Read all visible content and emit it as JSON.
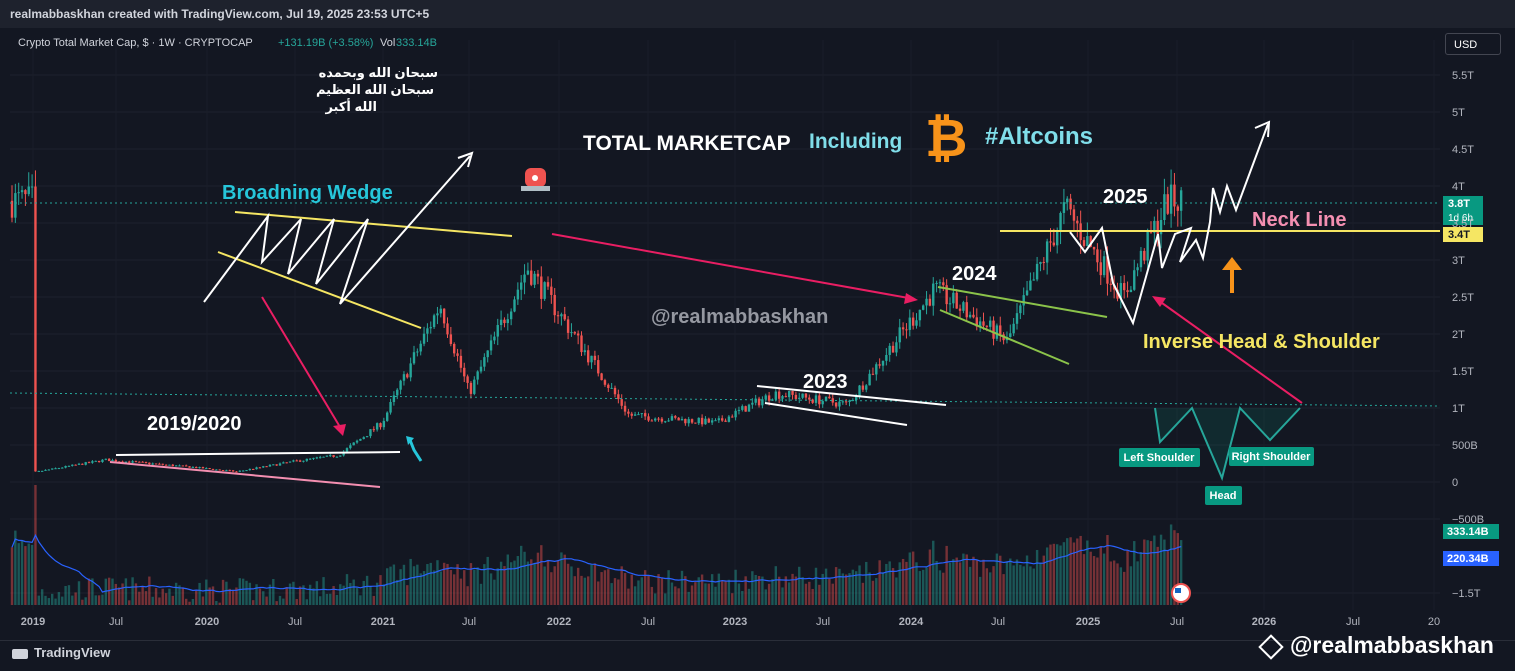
{
  "header": {
    "credit": "realmabbaskhan created with TradingView.com, Jul 19, 2025 23:53 UTC+5"
  },
  "legend": {
    "symbol": "Crypto Total Market Cap, $ · 1W · CRYPTOCAP",
    "change": "+131.19B (+3.58%)",
    "vol_label": "Vol",
    "vol_value": "333.14B"
  },
  "currency_button": "USD",
  "annotations": {
    "arabic_line1": "سبحان الله وبحمده",
    "arabic_line2": "سبحان الله العظيم",
    "arabic_line3": "الله أكبر",
    "title_part1": "TOTAL MARKETCAP",
    "title_part2": "Including",
    "title_part3": "#Altcoins",
    "broadening": "Broadning Wedge",
    "handle": "@realmabbaskhan",
    "y2019": "2019/2020",
    "y2023": "2023",
    "y2024": "2024",
    "y2025": "2025",
    "neck": "Neck Line",
    "ihs": "Inverse Head & Shoulder",
    "left_shoulder": "Left Shoulder",
    "head": "Head",
    "right_shoulder": "Right Shoulder"
  },
  "price_badges": {
    "last_price": "3.8T",
    "countdown": "1d 6h",
    "neck_price": "3.4T",
    "volume_last": "333.14B",
    "volume_ma": "220.34B"
  },
  "colors": {
    "background": "#131722",
    "bull": "#26a69a",
    "bear": "#ef5350",
    "neck": "#f5e663",
    "wedge": "#f5e663",
    "arrow_pink": "#e91e63",
    "cyan_text": "#26c6da",
    "ma_line": "#2962ff",
    "badge_green": "#089981",
    "orange": "#f7931a"
  },
  "chart_data": {
    "type": "candlestick",
    "interval": "1W",
    "y_axis_ticks": [
      "5.5T",
      "5T",
      "4.5T",
      "4T",
      "3.5T",
      "3T",
      "2.5T",
      "2T",
      "1.5T",
      "1T",
      "500B",
      "0",
      "−500B",
      "−1.5T"
    ],
    "x_axis_ticks": [
      "2019",
      "Jul",
      "2020",
      "Jul",
      "2021",
      "Jul",
      "2022",
      "Jul",
      "2023",
      "Jul",
      "2024",
      "Jul",
      "2025",
      "Jul",
      "2026",
      "Jul",
      "20"
    ],
    "price_path": [
      {
        "date": "2019-01",
        "value": 0.13
      },
      {
        "date": "2019-06",
        "value": 0.3
      },
      {
        "date": "2019-12",
        "value": 0.2
      },
      {
        "date": "2020-03",
        "value": 0.14
      },
      {
        "date": "2020-07",
        "value": 0.28
      },
      {
        "date": "2020-10",
        "value": 0.36
      },
      {
        "date": "2021-01",
        "value": 0.8
      },
      {
        "date": "2021-05",
        "value": 2.4
      },
      {
        "date": "2021-07",
        "value": 1.2
      },
      {
        "date": "2021-11",
        "value": 2.9
      },
      {
        "date": "2022-06",
        "value": 0.9
      },
      {
        "date": "2022-12",
        "value": 0.8
      },
      {
        "date": "2023-04",
        "value": 1.2
      },
      {
        "date": "2023-09",
        "value": 1.05
      },
      {
        "date": "2024-03",
        "value": 2.6
      },
      {
        "date": "2024-08",
        "value": 1.9
      },
      {
        "date": "2024-12",
        "value": 3.7
      },
      {
        "date": "2025-04",
        "value": 2.5
      },
      {
        "date": "2025-07",
        "value": 3.8
      }
    ],
    "neck_line": 3.4,
    "last_price": 3.8,
    "volume_last": "333.14B",
    "volume_ma": "220.34B",
    "grid": true
  }
}
